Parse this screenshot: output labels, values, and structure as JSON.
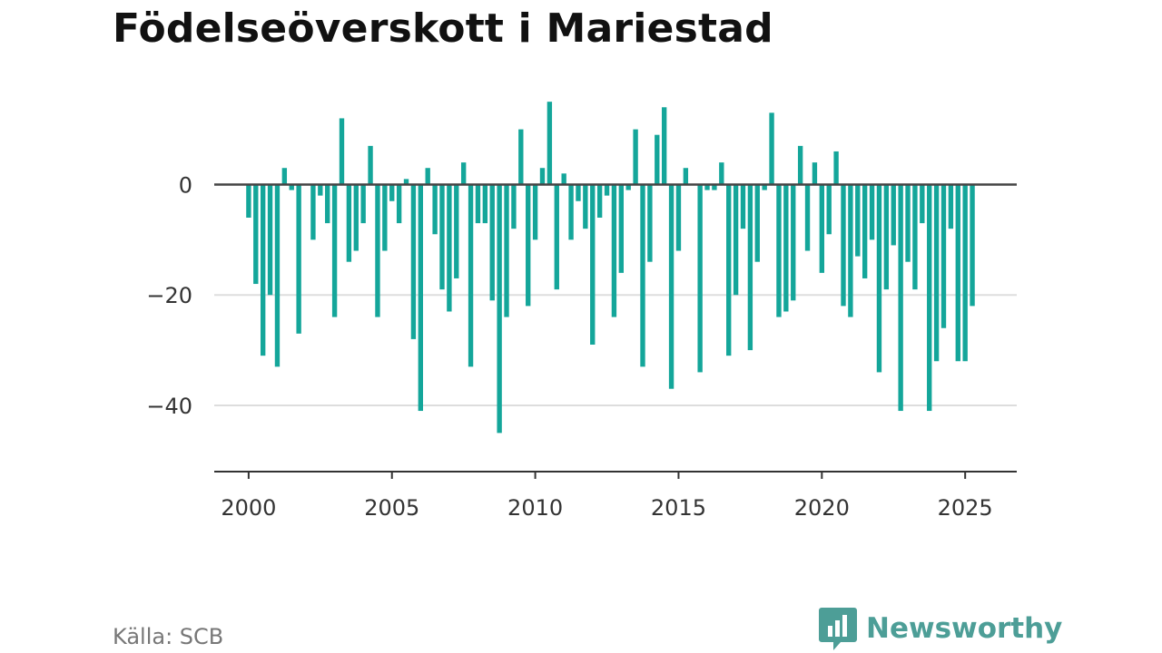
{
  "title": "Födelseöverskott i Mariestad",
  "source": "Källa: SCB",
  "brand": {
    "name": "Newsworthy",
    "icon": "newsworthy-logo-icon",
    "color": "#4d9e97"
  },
  "colors": {
    "bar": "#14a69a",
    "zero_line": "#444444",
    "grid": "#dddddd",
    "axis": "#333333"
  },
  "chart_data": {
    "type": "bar",
    "title": "Födelseöverskott i Mariestad",
    "xlabel": "",
    "ylabel": "",
    "x_ticks": [
      "2000",
      "2005",
      "2010",
      "2015",
      "2020",
      "2025"
    ],
    "y_ticks": [
      "0",
      "−20",
      "−40"
    ],
    "xlim": [
      1998.8,
      2026.8
    ],
    "ylim": [
      -52,
      17
    ],
    "grid": true,
    "start": "2000-Q1",
    "frequency": "quarterly",
    "values": [
      -6,
      -18,
      -31,
      -20,
      -33,
      3,
      -1,
      -27,
      0,
      -10,
      -2,
      -7,
      -24,
      12,
      -14,
      -12,
      -7,
      7,
      -24,
      -12,
      -3,
      -7,
      1,
      -28,
      -41,
      3,
      -9,
      -19,
      -23,
      -17,
      4,
      -33,
      -7,
      -7,
      -21,
      -45,
      -24,
      -8,
      10,
      -22,
      -10,
      3,
      15,
      -19,
      2,
      -10,
      -3,
      -8,
      -29,
      -6,
      -2,
      -24,
      -16,
      -1,
      10,
      -33,
      -14,
      9,
      14,
      -37,
      -12,
      3,
      0,
      -34,
      -1,
      -1,
      4,
      -31,
      -20,
      -8,
      -30,
      -14,
      -1,
      13,
      -24,
      -23,
      -21,
      7,
      -12,
      4,
      -16,
      -9,
      6,
      -22,
      -24,
      -13,
      -17,
      -10,
      -34,
      -19,
      -11,
      -41,
      -14,
      -19,
      -7,
      -41,
      -32,
      -26,
      -8,
      -32,
      -32,
      -22
    ]
  }
}
